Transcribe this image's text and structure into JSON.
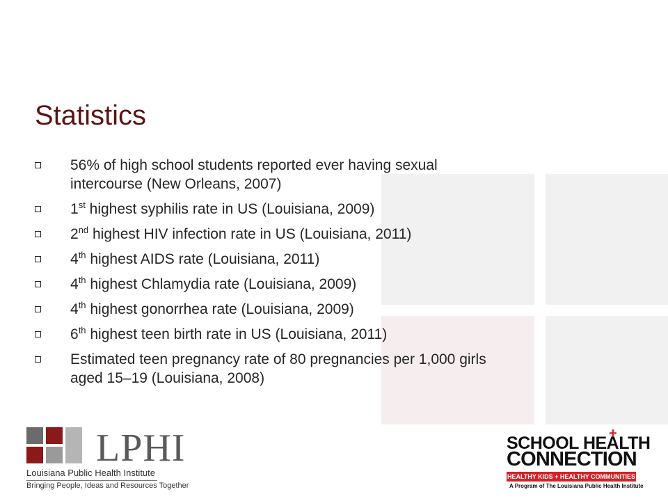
{
  "slide": {
    "title": "Statistics",
    "bullets": [
      {
        "pre": "56% of high school students reported ever having sexual",
        "sup": "",
        "post": "",
        "line2": "intercourse (New Orleans, 2007)"
      },
      {
        "pre": "1",
        "sup": "st",
        "post": " highest syphilis rate in US (Louisiana, 2009)",
        "line2": ""
      },
      {
        "pre": "2",
        "sup": "nd",
        "post": " highest HIV infection rate in US (Louisiana, 2011)",
        "line2": ""
      },
      {
        "pre": "4",
        "sup": "th",
        "post": " highest AIDS rate (Louisiana, 2011)",
        "line2": ""
      },
      {
        "pre": "4",
        "sup": "th",
        "post": " highest Chlamydia rate (Louisiana, 2009)",
        "line2": ""
      },
      {
        "pre": "4",
        "sup": "th",
        "post": " highest gonorrhea rate (Louisiana, 2009)",
        "line2": ""
      },
      {
        "pre": "6",
        "sup": "th",
        "post": " highest teen birth rate in US (Louisiana, 2011)",
        "line2": ""
      },
      {
        "pre": "Estimated teen pregnancy rate of 80 pregnancies per 1,000 girls",
        "sup": "",
        "post": "",
        "line2": "aged 15–19 (Louisiana, 2008)"
      }
    ]
  },
  "logos": {
    "lphi": {
      "wordmark": "LPHI",
      "name": "Louisiana Public Health Institute",
      "tagline": "Bringing People, Ideas and Resources Together"
    },
    "shc": {
      "line1": "SCHOOL HEALTH",
      "line2": "CONNECTION",
      "bar": "HEALTHY KIDS + HEALTHY COMMUNITIES",
      "sub": "A Program of The Louisiana Public Health Institute"
    }
  },
  "colors": {
    "title": "#5a1414",
    "shc_red": "#d42027"
  }
}
